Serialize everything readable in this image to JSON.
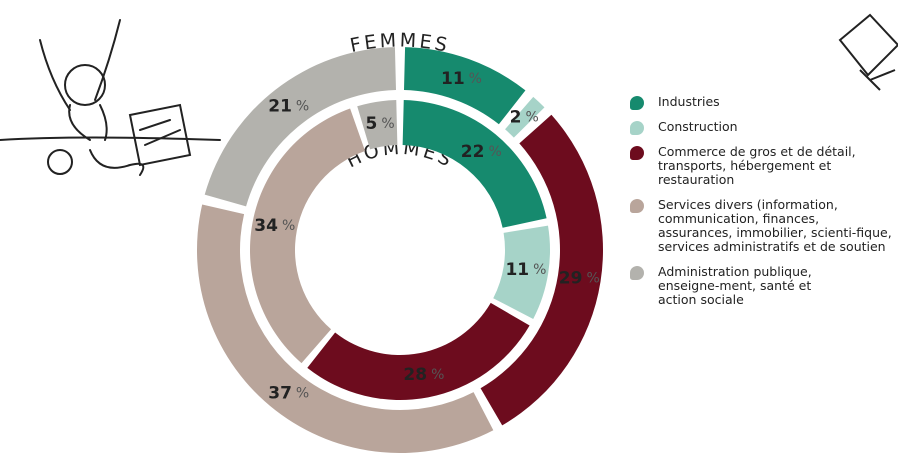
{
  "chart_data": {
    "type": "donut",
    "categories": [
      "Industries",
      "Construction",
      "Commerce de gros et de détail, transports,  hébergement et restauration",
      "Services divers (information, communication, finances, assurances, immobilier, scienti-fique, services administratifs et de soutien",
      "Administration publique, enseigne-ment, santé et action sociale"
    ],
    "colors": [
      "#168a6e",
      "#a6d3c8",
      "#6d0c1e",
      "#b9a59b",
      "#b3b2ad"
    ],
    "unit": "%",
    "series": [
      {
        "name": "FEMMES",
        "values": [
          11,
          2,
          29,
          37,
          21
        ]
      },
      {
        "name": "HOMMES",
        "values": [
          22,
          11,
          28,
          34,
          5
        ]
      }
    ]
  }
}
